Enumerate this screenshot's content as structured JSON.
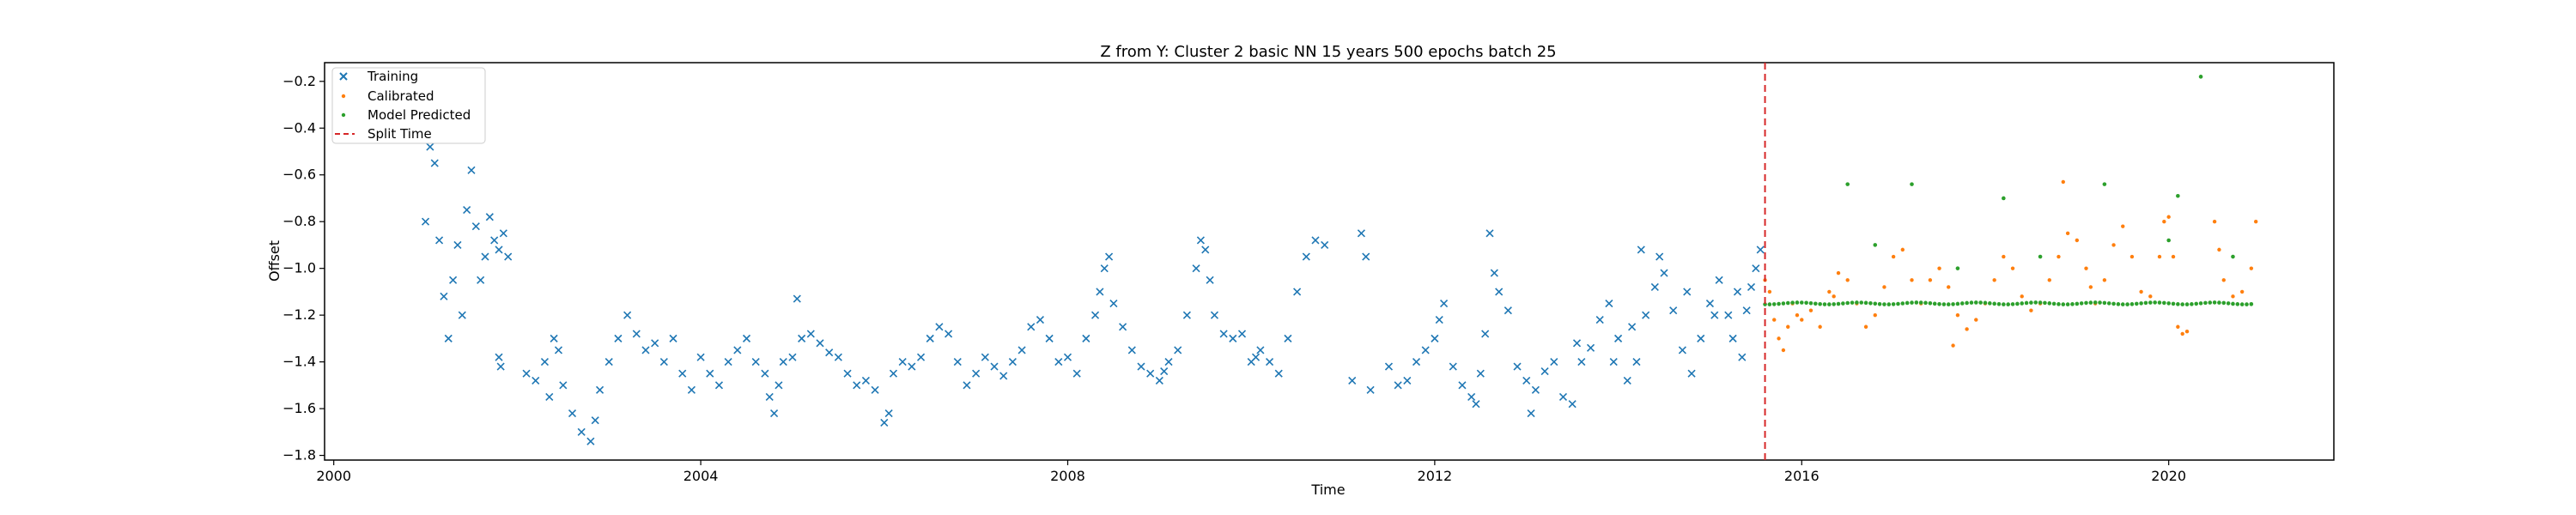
{
  "chart_data": {
    "type": "scatter",
    "title": "Z from Y: Cluster 2 basic NN 15 years 500 epochs batch 25",
    "xlabel": "Time",
    "ylabel": "Offset",
    "xlim": [
      1999.9,
      2021.8
    ],
    "ylim": [
      -1.82,
      -0.12
    ],
    "x_ticks": [
      2000,
      2004,
      2008,
      2012,
      2016,
      2020
    ],
    "y_ticks": [
      -1.8,
      -1.6,
      -1.4,
      -1.2,
      -1.0,
      -0.8,
      -0.6,
      -0.4,
      -0.2
    ],
    "grid": false,
    "legend": {
      "placement": "upper-left"
    },
    "split_time": 2015.6,
    "series": [
      {
        "name": "Training",
        "marker": "x",
        "color": "#1f77b4",
        "points": [
          [
            2001.0,
            -0.8
          ],
          [
            2001.05,
            -0.48
          ],
          [
            2001.1,
            -0.55
          ],
          [
            2001.15,
            -0.88
          ],
          [
            2001.2,
            -1.12
          ],
          [
            2001.25,
            -1.3
          ],
          [
            2001.3,
            -1.05
          ],
          [
            2001.35,
            -0.9
          ],
          [
            2001.4,
            -1.2
          ],
          [
            2001.45,
            -0.75
          ],
          [
            2001.5,
            -0.58
          ],
          [
            2001.55,
            -0.82
          ],
          [
            2001.6,
            -1.05
          ],
          [
            2001.65,
            -0.95
          ],
          [
            2001.7,
            -0.78
          ],
          [
            2001.75,
            -0.88
          ],
          [
            2001.8,
            -0.92
          ],
          [
            2001.85,
            -0.85
          ],
          [
            2001.9,
            -0.95
          ],
          [
            2001.8,
            -1.38
          ],
          [
            2001.82,
            -1.42
          ],
          [
            2002.1,
            -1.45
          ],
          [
            2002.2,
            -1.48
          ],
          [
            2002.3,
            -1.4
          ],
          [
            2002.35,
            -1.55
          ],
          [
            2002.4,
            -1.3
          ],
          [
            2002.45,
            -1.35
          ],
          [
            2002.5,
            -1.5
          ],
          [
            2002.6,
            -1.62
          ],
          [
            2002.7,
            -1.7
          ],
          [
            2002.8,
            -1.74
          ],
          [
            2002.85,
            -1.65
          ],
          [
            2002.9,
            -1.52
          ],
          [
            2003.0,
            -1.4
          ],
          [
            2003.1,
            -1.3
          ],
          [
            2003.2,
            -1.2
          ],
          [
            2003.3,
            -1.28
          ],
          [
            2003.4,
            -1.35
          ],
          [
            2003.5,
            -1.32
          ],
          [
            2003.6,
            -1.4
          ],
          [
            2003.7,
            -1.3
          ],
          [
            2003.8,
            -1.45
          ],
          [
            2003.9,
            -1.52
          ],
          [
            2004.0,
            -1.38
          ],
          [
            2004.1,
            -1.45
          ],
          [
            2004.2,
            -1.5
          ],
          [
            2004.3,
            -1.4
          ],
          [
            2004.4,
            -1.35
          ],
          [
            2004.5,
            -1.3
          ],
          [
            2004.6,
            -1.4
          ],
          [
            2004.7,
            -1.45
          ],
          [
            2004.75,
            -1.55
          ],
          [
            2004.8,
            -1.62
          ],
          [
            2004.85,
            -1.5
          ],
          [
            2004.9,
            -1.4
          ],
          [
            2005.0,
            -1.38
          ],
          [
            2005.05,
            -1.13
          ],
          [
            2005.1,
            -1.3
          ],
          [
            2005.2,
            -1.28
          ],
          [
            2005.3,
            -1.32
          ],
          [
            2005.4,
            -1.36
          ],
          [
            2005.5,
            -1.38
          ],
          [
            2005.6,
            -1.45
          ],
          [
            2005.7,
            -1.5
          ],
          [
            2005.8,
            -1.48
          ],
          [
            2005.9,
            -1.52
          ],
          [
            2006.0,
            -1.66
          ],
          [
            2006.05,
            -1.62
          ],
          [
            2006.1,
            -1.45
          ],
          [
            2006.2,
            -1.4
          ],
          [
            2006.3,
            -1.42
          ],
          [
            2006.4,
            -1.38
          ],
          [
            2006.5,
            -1.3
          ],
          [
            2006.6,
            -1.25
          ],
          [
            2006.7,
            -1.28
          ],
          [
            2006.8,
            -1.4
          ],
          [
            2006.9,
            -1.5
          ],
          [
            2007.0,
            -1.45
          ],
          [
            2007.1,
            -1.38
          ],
          [
            2007.2,
            -1.42
          ],
          [
            2007.3,
            -1.46
          ],
          [
            2007.4,
            -1.4
          ],
          [
            2007.5,
            -1.35
          ],
          [
            2007.6,
            -1.25
          ],
          [
            2007.7,
            -1.22
          ],
          [
            2007.8,
            -1.3
          ],
          [
            2007.9,
            -1.4
          ],
          [
            2008.0,
            -1.38
          ],
          [
            2008.1,
            -1.45
          ],
          [
            2008.2,
            -1.3
          ],
          [
            2008.3,
            -1.2
          ],
          [
            2008.35,
            -1.1
          ],
          [
            2008.4,
            -1.0
          ],
          [
            2008.45,
            -0.95
          ],
          [
            2008.5,
            -1.15
          ],
          [
            2008.6,
            -1.25
          ],
          [
            2008.7,
            -1.35
          ],
          [
            2008.8,
            -1.42
          ],
          [
            2008.9,
            -1.45
          ],
          [
            2009.0,
            -1.48
          ],
          [
            2009.05,
            -1.44
          ],
          [
            2009.1,
            -1.4
          ],
          [
            2009.2,
            -1.35
          ],
          [
            2009.3,
            -1.2
          ],
          [
            2009.4,
            -1.0
          ],
          [
            2009.45,
            -0.88
          ],
          [
            2009.5,
            -0.92
          ],
          [
            2009.55,
            -1.05
          ],
          [
            2009.6,
            -1.2
          ],
          [
            2009.7,
            -1.28
          ],
          [
            2009.8,
            -1.3
          ],
          [
            2009.9,
            -1.28
          ],
          [
            2010.0,
            -1.4
          ],
          [
            2010.05,
            -1.38
          ],
          [
            2010.1,
            -1.35
          ],
          [
            2010.2,
            -1.4
          ],
          [
            2010.3,
            -1.45
          ],
          [
            2010.4,
            -1.3
          ],
          [
            2010.5,
            -1.1
          ],
          [
            2010.6,
            -0.95
          ],
          [
            2010.7,
            -0.88
          ],
          [
            2010.8,
            -0.9
          ],
          [
            2011.5,
            -1.42
          ],
          [
            2011.6,
            -1.5
          ],
          [
            2011.7,
            -1.48
          ],
          [
            2011.8,
            -1.4
          ],
          [
            2011.9,
            -1.35
          ],
          [
            2012.0,
            -1.3
          ],
          [
            2012.05,
            -1.22
          ],
          [
            2012.1,
            -1.15
          ],
          [
            2012.2,
            -1.42
          ],
          [
            2012.3,
            -1.5
          ],
          [
            2012.4,
            -1.55
          ],
          [
            2012.5,
            -1.45
          ],
          [
            2012.6,
            -0.85
          ],
          [
            2012.65,
            -1.02
          ],
          [
            2012.7,
            -1.1
          ],
          [
            2012.8,
            -1.18
          ],
          [
            2012.9,
            -1.42
          ],
          [
            2013.0,
            -1.48
          ],
          [
            2013.1,
            -1.52
          ],
          [
            2013.2,
            -1.44
          ],
          [
            2013.3,
            -1.4
          ],
          [
            2013.4,
            -1.55
          ],
          [
            2013.5,
            -1.58
          ],
          [
            2013.6,
            -1.4
          ],
          [
            2013.7,
            -1.34
          ],
          [
            2013.8,
            -1.22
          ],
          [
            2013.9,
            -1.15
          ],
          [
            2014.0,
            -1.3
          ],
          [
            2014.1,
            -1.48
          ],
          [
            2014.2,
            -1.4
          ],
          [
            2014.3,
            -1.2
          ],
          [
            2014.4,
            -1.08
          ],
          [
            2014.5,
            -1.02
          ],
          [
            2014.6,
            -1.18
          ],
          [
            2014.7,
            -1.35
          ],
          [
            2014.8,
            -1.45
          ],
          [
            2014.9,
            -1.3
          ],
          [
            2015.0,
            -1.15
          ],
          [
            2015.1,
            -1.05
          ],
          [
            2015.2,
            -1.2
          ],
          [
            2015.3,
            -1.1
          ],
          [
            2015.4,
            -1.18
          ],
          [
            2015.5,
            -1.0
          ],
          [
            2015.55,
            -0.92
          ],
          [
            2011.1,
            -1.48
          ],
          [
            2011.3,
            -1.52
          ],
          [
            2011.2,
            -0.85
          ],
          [
            2011.25,
            -0.95
          ],
          [
            2013.05,
            -1.62
          ],
          [
            2012.45,
            -1.58
          ],
          [
            2012.55,
            -1.28
          ],
          [
            2013.55,
            -1.32
          ],
          [
            2013.95,
            -1.4
          ],
          [
            2014.15,
            -1.25
          ],
          [
            2014.25,
            -0.92
          ],
          [
            2014.45,
            -0.95
          ],
          [
            2014.75,
            -1.1
          ],
          [
            2015.05,
            -1.2
          ],
          [
            2015.25,
            -1.3
          ],
          [
            2015.35,
            -1.38
          ],
          [
            2015.45,
            -1.08
          ]
        ]
      },
      {
        "name": "Calibrated",
        "marker": ".",
        "color": "#ff7f0e",
        "points": [
          [
            2015.6,
            -1.05
          ],
          [
            2015.65,
            -1.1
          ],
          [
            2015.7,
            -1.22
          ],
          [
            2015.75,
            -1.3
          ],
          [
            2015.8,
            -1.35
          ],
          [
            2015.85,
            -1.25
          ],
          [
            2015.9,
            -1.15
          ],
          [
            2015.95,
            -1.2
          ],
          [
            2016.0,
            -1.22
          ],
          [
            2016.1,
            -1.18
          ],
          [
            2016.2,
            -1.25
          ],
          [
            2016.3,
            -1.1
          ],
          [
            2016.4,
            -1.02
          ],
          [
            2016.5,
            -1.05
          ],
          [
            2016.6,
            -1.15
          ],
          [
            2016.7,
            -1.25
          ],
          [
            2016.8,
            -1.2
          ],
          [
            2016.9,
            -1.08
          ],
          [
            2017.0,
            -0.95
          ],
          [
            2017.1,
            -0.92
          ],
          [
            2017.2,
            -1.05
          ],
          [
            2017.3,
            -1.15
          ],
          [
            2017.4,
            -1.05
          ],
          [
            2017.5,
            -1.0
          ],
          [
            2017.6,
            -1.08
          ],
          [
            2017.7,
            -1.2
          ],
          [
            2017.8,
            -1.26
          ],
          [
            2017.9,
            -1.22
          ],
          [
            2018.0,
            -1.15
          ],
          [
            2018.1,
            -1.05
          ],
          [
            2018.2,
            -0.95
          ],
          [
            2018.3,
            -1.0
          ],
          [
            2018.4,
            -1.12
          ],
          [
            2018.5,
            -1.18
          ],
          [
            2018.6,
            -1.15
          ],
          [
            2018.7,
            -1.05
          ],
          [
            2018.8,
            -0.95
          ],
          [
            2018.85,
            -0.63
          ],
          [
            2018.9,
            -0.85
          ],
          [
            2019.0,
            -0.88
          ],
          [
            2019.1,
            -1.0
          ],
          [
            2019.2,
            -1.15
          ],
          [
            2019.3,
            -1.05
          ],
          [
            2019.4,
            -0.9
          ],
          [
            2019.5,
            -0.82
          ],
          [
            2019.6,
            -0.95
          ],
          [
            2019.7,
            -1.1
          ],
          [
            2019.8,
            -1.12
          ],
          [
            2019.9,
            -0.95
          ],
          [
            2019.95,
            -0.8
          ],
          [
            2020.0,
            -0.78
          ],
          [
            2020.05,
            -0.95
          ],
          [
            2020.1,
            -1.25
          ],
          [
            2020.15,
            -1.28
          ],
          [
            2020.2,
            -1.27
          ],
          [
            2020.5,
            -0.8
          ],
          [
            2020.55,
            -0.92
          ],
          [
            2020.6,
            -1.05
          ],
          [
            2020.7,
            -1.12
          ],
          [
            2020.8,
            -1.1
          ],
          [
            2020.9,
            -1.0
          ],
          [
            2020.95,
            -0.8
          ],
          [
            2017.65,
            -1.33
          ],
          [
            2016.35,
            -1.12
          ],
          [
            2019.15,
            -1.08
          ]
        ]
      },
      {
        "name": "Model Predicted",
        "marker": ".",
        "color": "#2ca02c",
        "baseline": -1.15,
        "points": [
          [
            2016.5,
            -0.64
          ],
          [
            2017.2,
            -0.64
          ],
          [
            2018.2,
            -0.7
          ],
          [
            2019.3,
            -0.64
          ],
          [
            2020.1,
            -0.69
          ],
          [
            2020.35,
            -0.18
          ],
          [
            2016.8,
            -0.9
          ],
          [
            2017.7,
            -1.0
          ],
          [
            2018.6,
            -0.95
          ],
          [
            2020.0,
            -0.88
          ],
          [
            2020.7,
            -0.95
          ]
        ]
      }
    ]
  }
}
